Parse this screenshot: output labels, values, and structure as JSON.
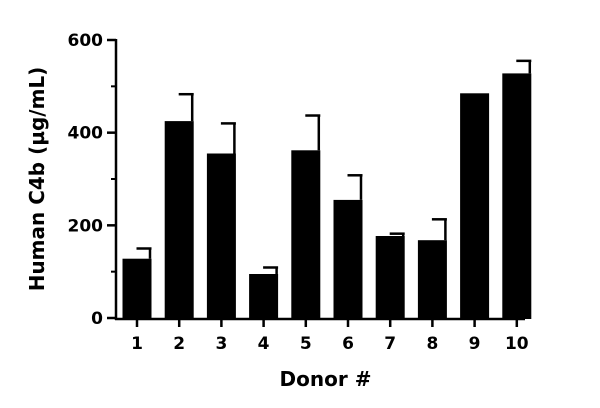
{
  "chart_data": {
    "type": "bar",
    "title": "",
    "xlabel": "Donor #",
    "ylabel": "Human C4b (µg/mL)",
    "ylim": [
      0,
      600
    ],
    "yticks": [
      0,
      200,
      400,
      600
    ],
    "yminor_step": 100,
    "grid": false,
    "categories": [
      "1",
      "2",
      "3",
      "4",
      "5",
      "6",
      "7",
      "8",
      "9",
      "10"
    ],
    "values": [
      128,
      425,
      355,
      95,
      362,
      255,
      177,
      168,
      485,
      528
    ],
    "errors": [
      22,
      58,
      65,
      14,
      75,
      53,
      5,
      45,
      0,
      27
    ],
    "bar_color": "#000000"
  }
}
